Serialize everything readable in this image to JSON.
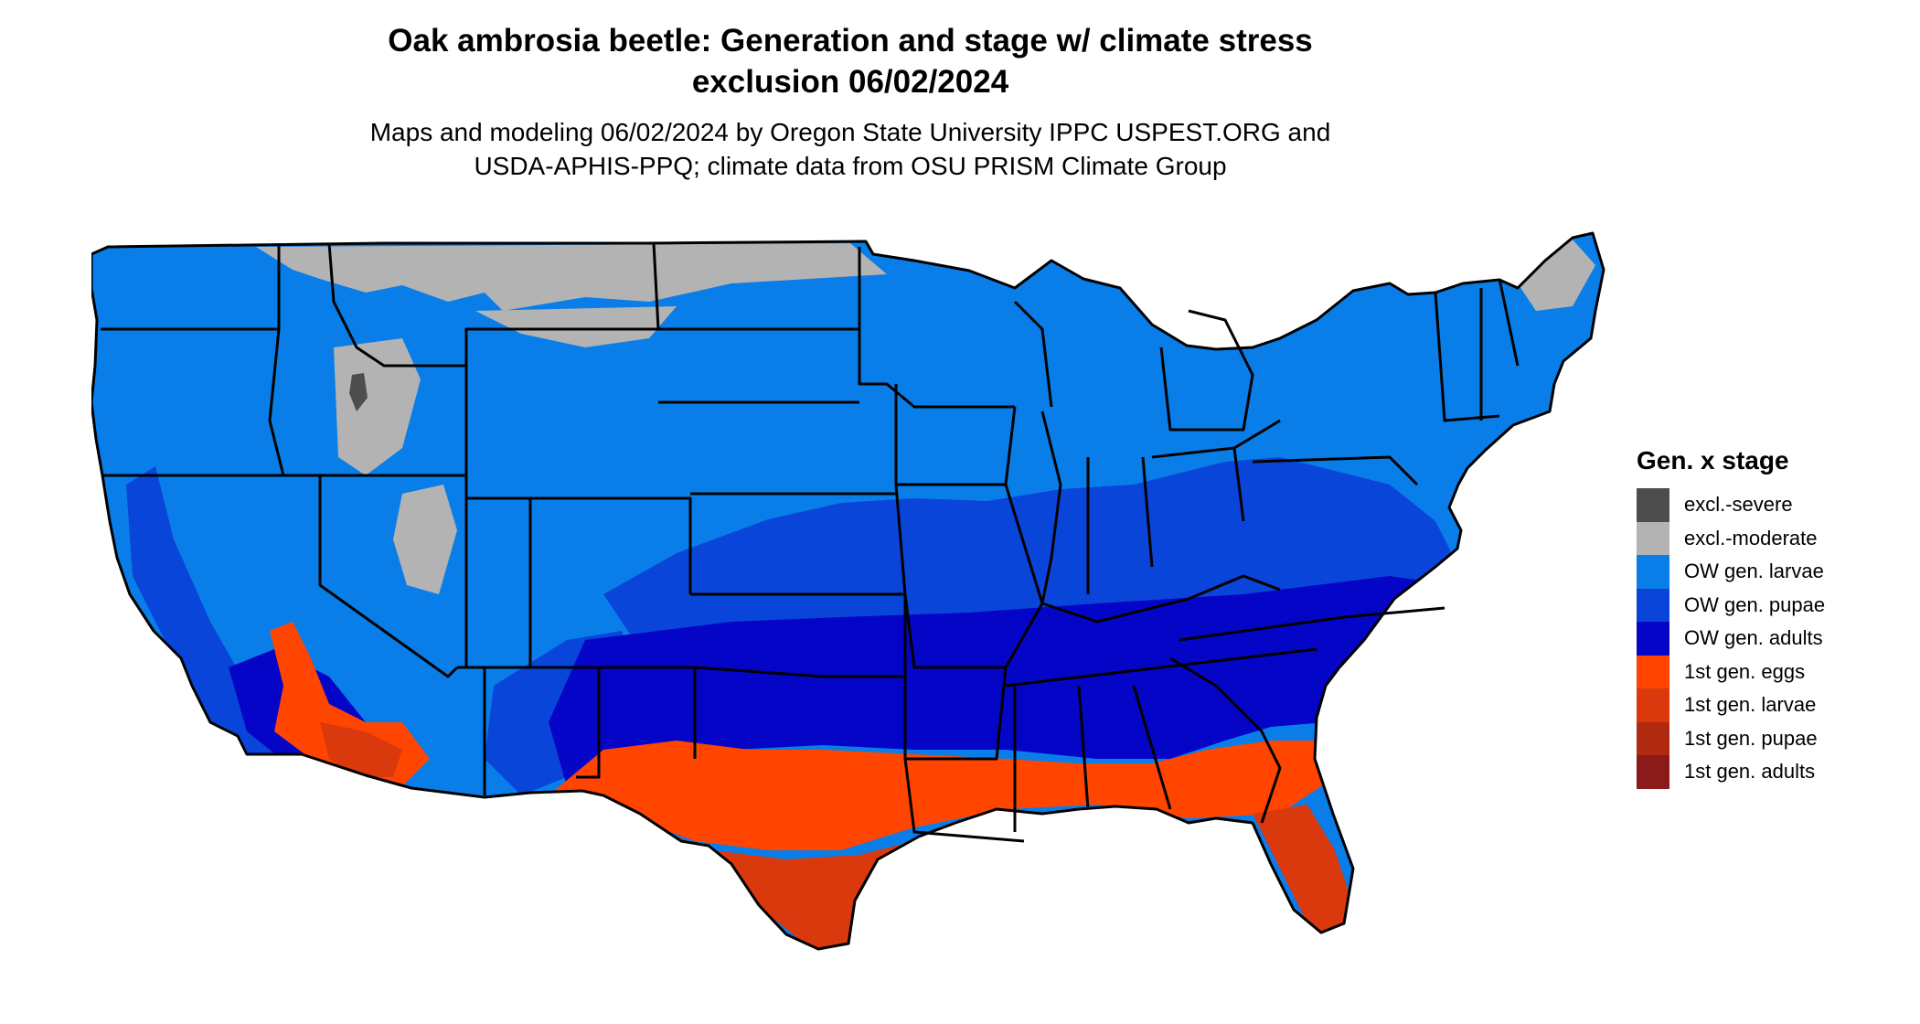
{
  "title_line1": "Oak ambrosia beetle: Generation and stage w/ climate stress",
  "title_line2": "exclusion 06/02/2024",
  "subtitle_line1": "Maps and modeling 06/02/2024 by Oregon State University IPPC USPEST.ORG and",
  "subtitle_line2": "USDA-APHIS-PPQ; climate data from OSU PRISM Climate Group",
  "legend": {
    "title": "Gen. x stage",
    "items": [
      {
        "label": "excl.-severe",
        "color": "#4d4d4d"
      },
      {
        "label": "excl.-moderate",
        "color": "#b3b3b3"
      },
      {
        "label": "OW gen. larvae",
        "color": "#0a7ee8"
      },
      {
        "label": "OW gen. pupae",
        "color": "#0a45d9"
      },
      {
        "label": "OW gen. adults",
        "color": "#0505c8"
      },
      {
        "label": "1st gen. eggs",
        "color": "#ff4500"
      },
      {
        "label": "1st gen. larvae",
        "color": "#d9390c"
      },
      {
        "label": "1st gen. pupae",
        "color": "#b02a12"
      },
      {
        "label": "1st gen. adults",
        "color": "#8b1a1a"
      }
    ]
  },
  "map": {
    "region": "Conterminous United States",
    "state_border_color": "#000000"
  }
}
